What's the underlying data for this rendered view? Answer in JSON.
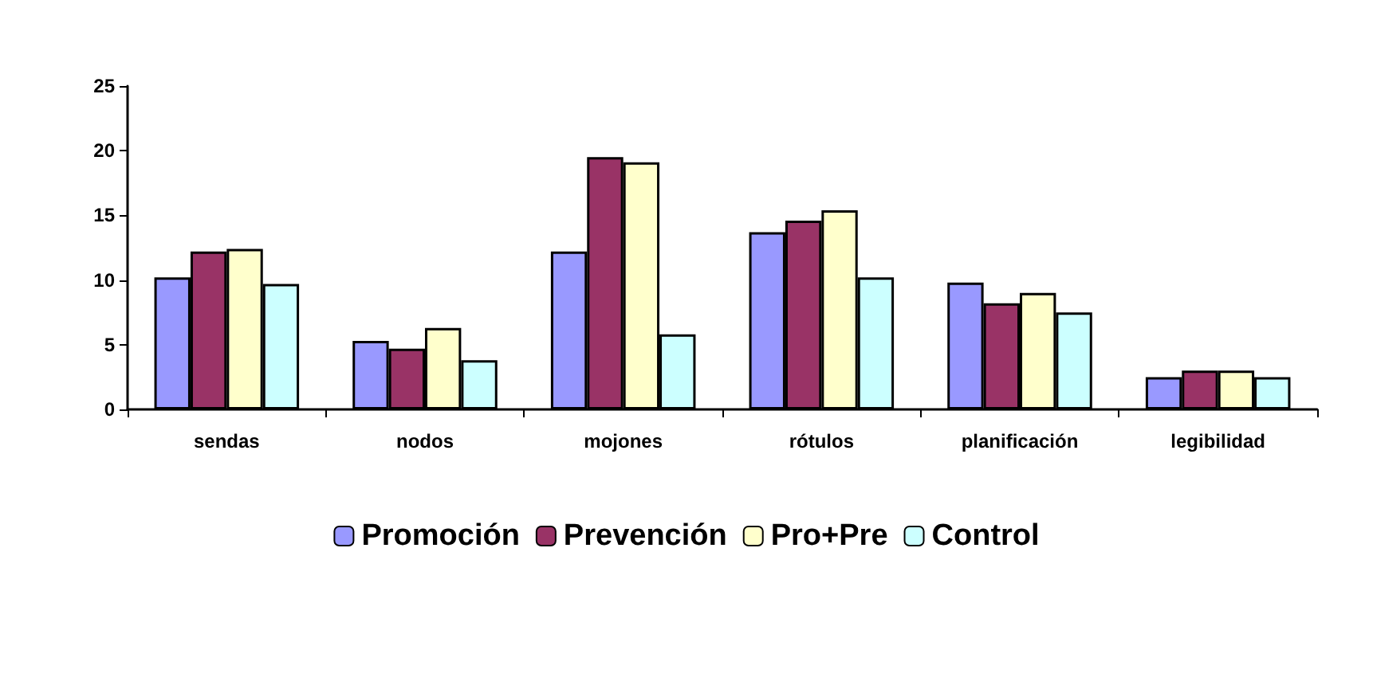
{
  "chart_data": {
    "type": "bar",
    "categories": [
      "sendas",
      "nodos",
      "mojones",
      "rótulos",
      "planificación",
      "legibilidad"
    ],
    "series": [
      {
        "name": "Promoción",
        "color": "#9999ff",
        "values": [
          10.2,
          5.3,
          12.2,
          13.7,
          9.8,
          2.5
        ]
      },
      {
        "name": "Prevención",
        "color": "#993366",
        "values": [
          12.2,
          4.7,
          19.5,
          14.6,
          8.2,
          3.0
        ]
      },
      {
        "name": "Pro+Pre",
        "color": "#ffffcc",
        "values": [
          12.4,
          6.3,
          19.1,
          15.4,
          9.0,
          3.0
        ]
      },
      {
        "name": "Control",
        "color": "#ccffff",
        "values": [
          9.7,
          3.8,
          5.8,
          10.2,
          7.5,
          2.5
        ]
      }
    ],
    "ylim": [
      0,
      25
    ],
    "yticks": [
      0,
      5,
      10,
      15,
      20,
      25
    ],
    "grid": false,
    "legend": "bottom"
  }
}
